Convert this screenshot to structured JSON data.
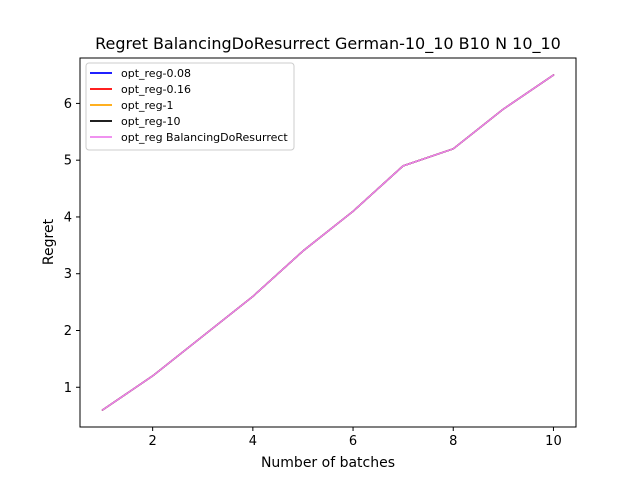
{
  "chart_data": {
    "type": "line",
    "title": "Regret BalancingDoResurrect German-10_10 B10 N 10_10",
    "xlabel": "Number of batches",
    "ylabel": "Regret",
    "xlim": [
      0.55,
      10.45
    ],
    "ylim": [
      0.3,
      6.8
    ],
    "xticks": [
      2,
      4,
      6,
      8,
      10
    ],
    "yticks": [
      1,
      2,
      3,
      4,
      5,
      6
    ],
    "grid": false,
    "legend_position": "top-left",
    "x": [
      1,
      2,
      3,
      4,
      5,
      6,
      7,
      8,
      9,
      10
    ],
    "series": [
      {
        "name": "opt_reg-0.08",
        "color": "#0000ff",
        "values": [
          0.6,
          1.2,
          1.9,
          2.6,
          3.4,
          4.1,
          4.9,
          5.2,
          5.9,
          6.5
        ]
      },
      {
        "name": "opt_reg-0.16",
        "color": "#ff0000",
        "values": [
          0.6,
          1.2,
          1.9,
          2.6,
          3.4,
          4.1,
          4.9,
          5.2,
          5.9,
          6.5
        ]
      },
      {
        "name": "opt_reg-1",
        "color": "#ffa500",
        "values": [
          0.6,
          1.2,
          1.9,
          2.6,
          3.4,
          4.1,
          4.9,
          5.2,
          5.9,
          6.5
        ]
      },
      {
        "name": "opt_reg-10",
        "color": "#000000",
        "values": [
          0.6,
          1.2,
          1.9,
          2.6,
          3.4,
          4.1,
          4.9,
          5.2,
          5.9,
          6.5
        ]
      },
      {
        "name": "opt_reg BalancingDoResurrect",
        "color": "#ee82ee",
        "values": [
          0.6,
          1.2,
          1.9,
          2.6,
          3.4,
          4.1,
          4.9,
          5.2,
          5.9,
          6.5
        ]
      }
    ]
  }
}
